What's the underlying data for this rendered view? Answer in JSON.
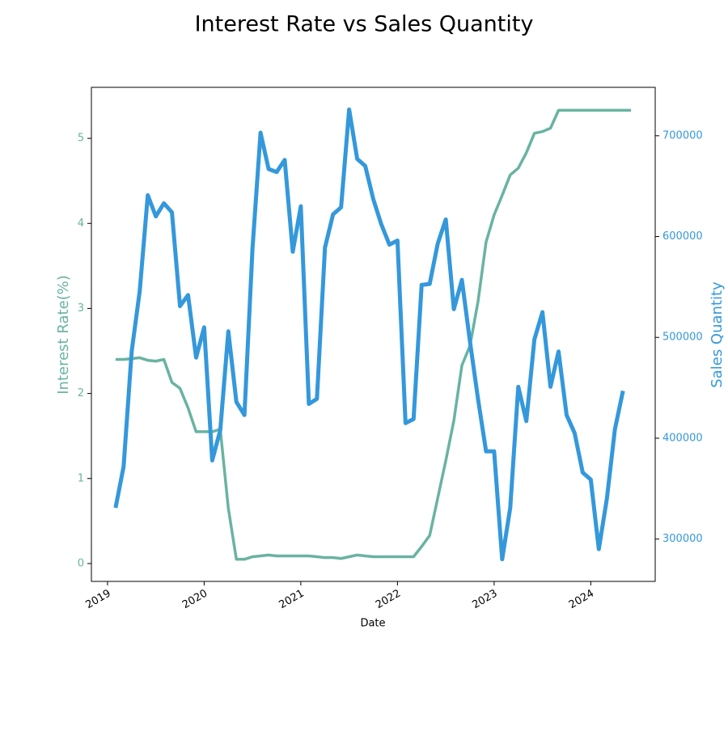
{
  "chart_data": {
    "type": "line",
    "title": "Interest Rate vs Sales Quantity",
    "x_label": "Date",
    "y_label": "Interest Rate(%)",
    "y2_label": "Sales Quantity",
    "x": [
      "2019-02",
      "2019-03",
      "2019-04",
      "2019-05",
      "2019-06",
      "2019-07",
      "2019-08",
      "2019-09",
      "2019-10",
      "2019-11",
      "2019-12",
      "2020-01",
      "2020-02",
      "2020-03",
      "2020-04",
      "2020-05",
      "2020-06",
      "2020-07",
      "2020-08",
      "2020-09",
      "2020-10",
      "2020-11",
      "2020-12",
      "2021-01",
      "2021-02",
      "2021-03",
      "2021-04",
      "2021-05",
      "2021-06",
      "2021-07",
      "2021-08",
      "2021-09",
      "2021-10",
      "2021-11",
      "2021-12",
      "2022-01",
      "2022-02",
      "2022-03",
      "2022-04",
      "2022-05",
      "2022-06",
      "2022-07",
      "2022-08",
      "2022-09",
      "2022-10",
      "2022-11",
      "2022-12",
      "2023-01",
      "2023-02",
      "2023-03",
      "2023-04",
      "2023-05",
      "2023-06",
      "2023-07",
      "2023-08",
      "2023-09",
      "2023-10",
      "2023-11",
      "2023-12",
      "2024-01",
      "2024-02",
      "2024-03",
      "2024-04",
      "2024-05",
      "2024-06"
    ],
    "series": [
      {
        "name": "Interest Rate(%)",
        "color": "#69b3a2",
        "axis": "y",
        "values": [
          2.4,
          2.4,
          2.41,
          2.42,
          2.39,
          2.38,
          2.4,
          2.13,
          2.06,
          1.83,
          1.55,
          1.55,
          1.55,
          1.58,
          0.65,
          0.05,
          0.05,
          0.08,
          0.09,
          0.1,
          0.09,
          0.09,
          0.09,
          0.09,
          0.09,
          0.08,
          0.07,
          0.07,
          0.06,
          0.08,
          0.1,
          0.09,
          0.08,
          0.08,
          0.08,
          0.08,
          0.08,
          0.08,
          0.2,
          0.33,
          0.77,
          1.21,
          1.68,
          2.33,
          2.56,
          3.08,
          3.78,
          4.1,
          4.33,
          4.57,
          4.65,
          4.83,
          5.06,
          5.08,
          5.12,
          5.33,
          5.33,
          5.33,
          5.33,
          5.33,
          5.33,
          5.33,
          5.33,
          5.33,
          5.33
        ]
      },
      {
        "name": "Sales Quantity",
        "color": "#3498db",
        "axis": "y2",
        "values": [
          331000,
          372000,
          486000,
          546000,
          641000,
          620000,
          633000,
          624000,
          531000,
          542000,
          480000,
          510000,
          378000,
          408000,
          506000,
          436000,
          423000,
          588000,
          703000,
          667000,
          664000,
          676000,
          585000,
          630000,
          434000,
          439000,
          589000,
          622000,
          629000,
          726000,
          677000,
          670000,
          637000,
          612000,
          592000,
          596000,
          415000,
          419000,
          552000,
          553000,
          593000,
          617000,
          528000,
          557000,
          496000,
          439000,
          387000,
          387000,
          280000,
          331000,
          451000,
          417000,
          498000,
          525000,
          451000,
          486000,
          423000,
          405000,
          366000,
          359000,
          290000,
          340000,
          409000,
          447000,
          null
        ]
      }
    ],
    "xlim": [
      "2018-11",
      "2024-09"
    ],
    "xticks": [
      {
        "value": "2019-01",
        "label": "2019"
      },
      {
        "value": "2020-01",
        "label": "2020"
      },
      {
        "value": "2021-01",
        "label": "2021"
      },
      {
        "value": "2022-01",
        "label": "2022"
      },
      {
        "value": "2023-01",
        "label": "2023"
      },
      {
        "value": "2024-01",
        "label": "2024"
      }
    ],
    "ylim": [
      -0.21,
      5.6
    ],
    "yticks": [
      0,
      1,
      2,
      3,
      4,
      5
    ],
    "y2lim": [
      258000,
      748000
    ],
    "y2ticks": [
      300000,
      400000,
      500000,
      600000,
      700000
    ],
    "grid": false
  }
}
